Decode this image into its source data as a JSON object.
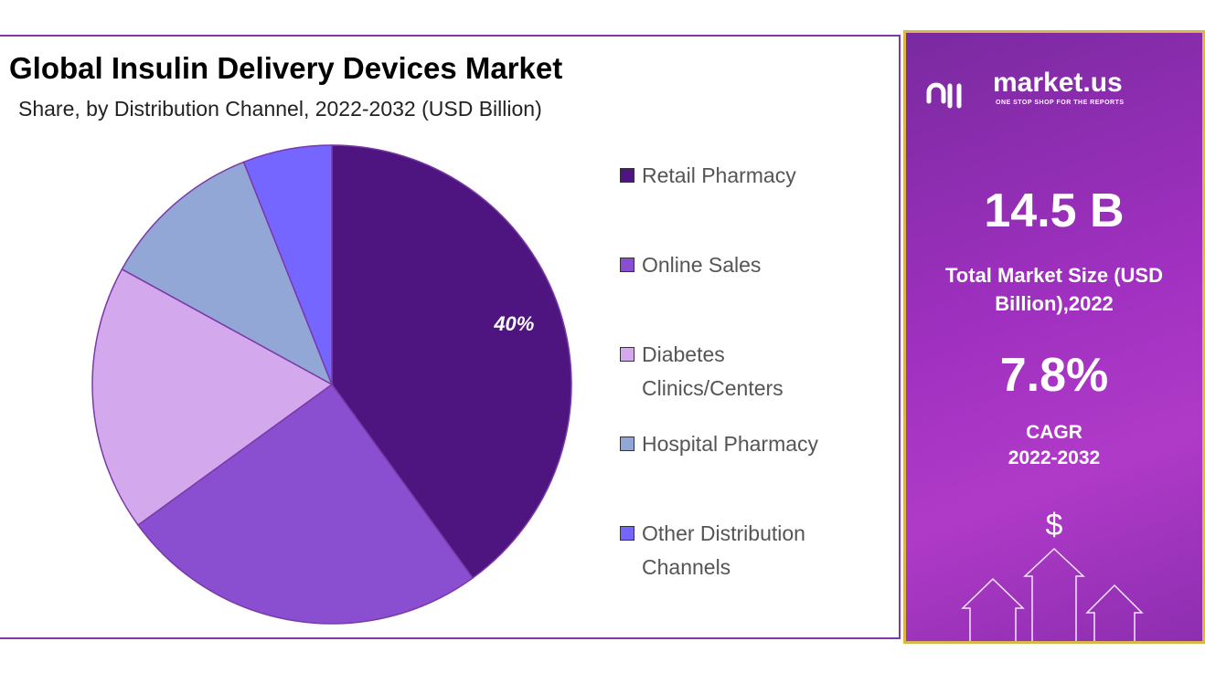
{
  "chart_data": {
    "type": "pie",
    "title": "Global Insulin Delivery Devices Market",
    "subtitle": "Share, by Distribution Channel, 2022-2032 (USD Billion)",
    "categories": [
      "Retail Pharmacy",
      "Online Sales",
      "Diabetes Clinics/Centers",
      "Hospital Pharmacy",
      "Other Distribution Channels"
    ],
    "values": [
      40,
      25,
      18,
      11,
      6
    ],
    "value_labels": [
      "40%",
      null,
      null,
      null,
      null
    ],
    "colors": [
      "#4e1580",
      "#8a4fd0",
      "#d4a8ec",
      "#92a7d6",
      "#7466ff"
    ]
  },
  "panel": {
    "brand": "market.us",
    "tagline": "ONE STOP SHOP FOR THE REPORTS",
    "market_size": "14.5 B",
    "market_size_label": "Total Market Size (USD Billion),2022",
    "cagr": "7.8%",
    "cagr_label": "CAGR",
    "cagr_period": "2022-2032",
    "icon": "$"
  }
}
